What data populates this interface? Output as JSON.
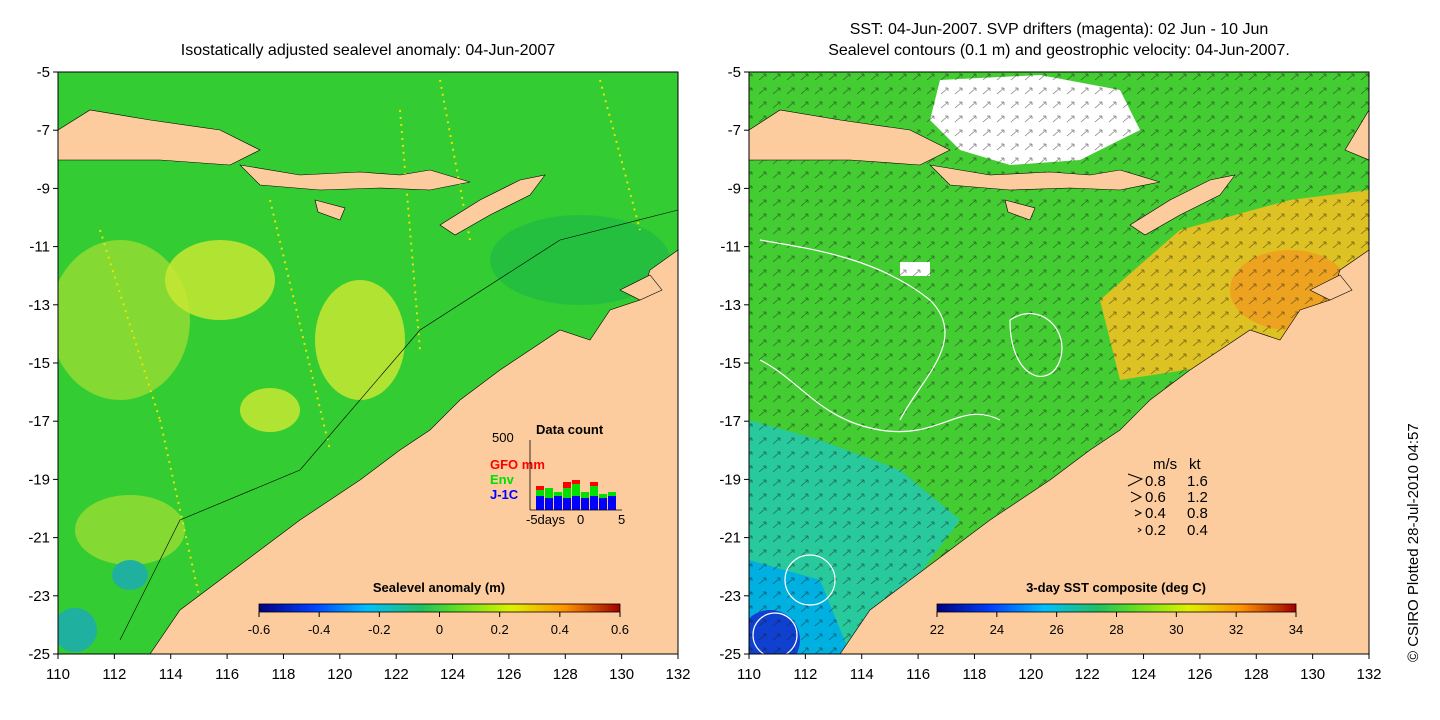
{
  "left_panel": {
    "title": "Isostatically adjusted sealevel anomaly: 04-Jun-2007",
    "y_ticks": [
      "-5",
      "-7",
      "-9",
      "-11",
      "-13",
      "-15",
      "-17",
      "-19",
      "-21",
      "-23",
      "-25"
    ],
    "x_ticks": [
      "110",
      "112",
      "114",
      "116",
      "118",
      "120",
      "122",
      "124",
      "126",
      "128",
      "130",
      "132"
    ],
    "colorbar": {
      "label": "Sealevel anomaly (m)",
      "ticks": [
        "-0.6",
        "-0.4",
        "-0.2",
        "0",
        "0.2",
        "0.4",
        "0.6"
      ],
      "range": [
        -0.6,
        0.6
      ]
    },
    "inset": {
      "title": "Data count",
      "max_label": "500",
      "series": [
        {
          "name": "GFO mm",
          "color": "#ff0000"
        },
        {
          "name": "Env",
          "color": "#00e000"
        },
        {
          "name": "J-1C",
          "color": "#0000ff"
        }
      ],
      "x_label_left": "-5days",
      "x_label_mid": "0",
      "x_label_right": "5"
    }
  },
  "right_panel": {
    "title_line1": "SST: 04-Jun-2007. SVP drifters (magenta): 02 Jun - 10 Jun",
    "title_line2": "Sealevel contours (0.1 m) and geostrophic velocity: 04-Jun-2007.",
    "y_ticks": [
      "-5",
      "-7",
      "-9",
      "-11",
      "-13",
      "-15",
      "-17",
      "-19",
      "-21",
      "-23",
      "-25"
    ],
    "x_ticks": [
      "110",
      "112",
      "114",
      "116",
      "118",
      "120",
      "122",
      "124",
      "126",
      "128",
      "130",
      "132"
    ],
    "colorbar": {
      "label": "3-day SST composite (deg C)",
      "ticks": [
        "22",
        "24",
        "26",
        "28",
        "30",
        "32",
        "34"
      ],
      "range": [
        22,
        34
      ]
    },
    "velocity_legend": {
      "header_ms": "m/s",
      "header_kt": "kt",
      "rows": [
        {
          "ms": "0.8",
          "kt": "1.6"
        },
        {
          "ms": "0.6",
          "kt": "1.2"
        },
        {
          "ms": "0.4",
          "kt": "0.8"
        },
        {
          "ms": "0.2",
          "kt": "0.4"
        }
      ]
    }
  },
  "map_extent": {
    "lon": [
      110,
      132
    ],
    "lat": [
      -25,
      -5
    ]
  },
  "colors": {
    "land": "#fccc9e",
    "ocean_base": "#33cc33",
    "ocean_light": "#99e633",
    "white_cloud": "#ffffff"
  },
  "credit": "© CSIRO Plotted 28-Jul-2010 04:57"
}
